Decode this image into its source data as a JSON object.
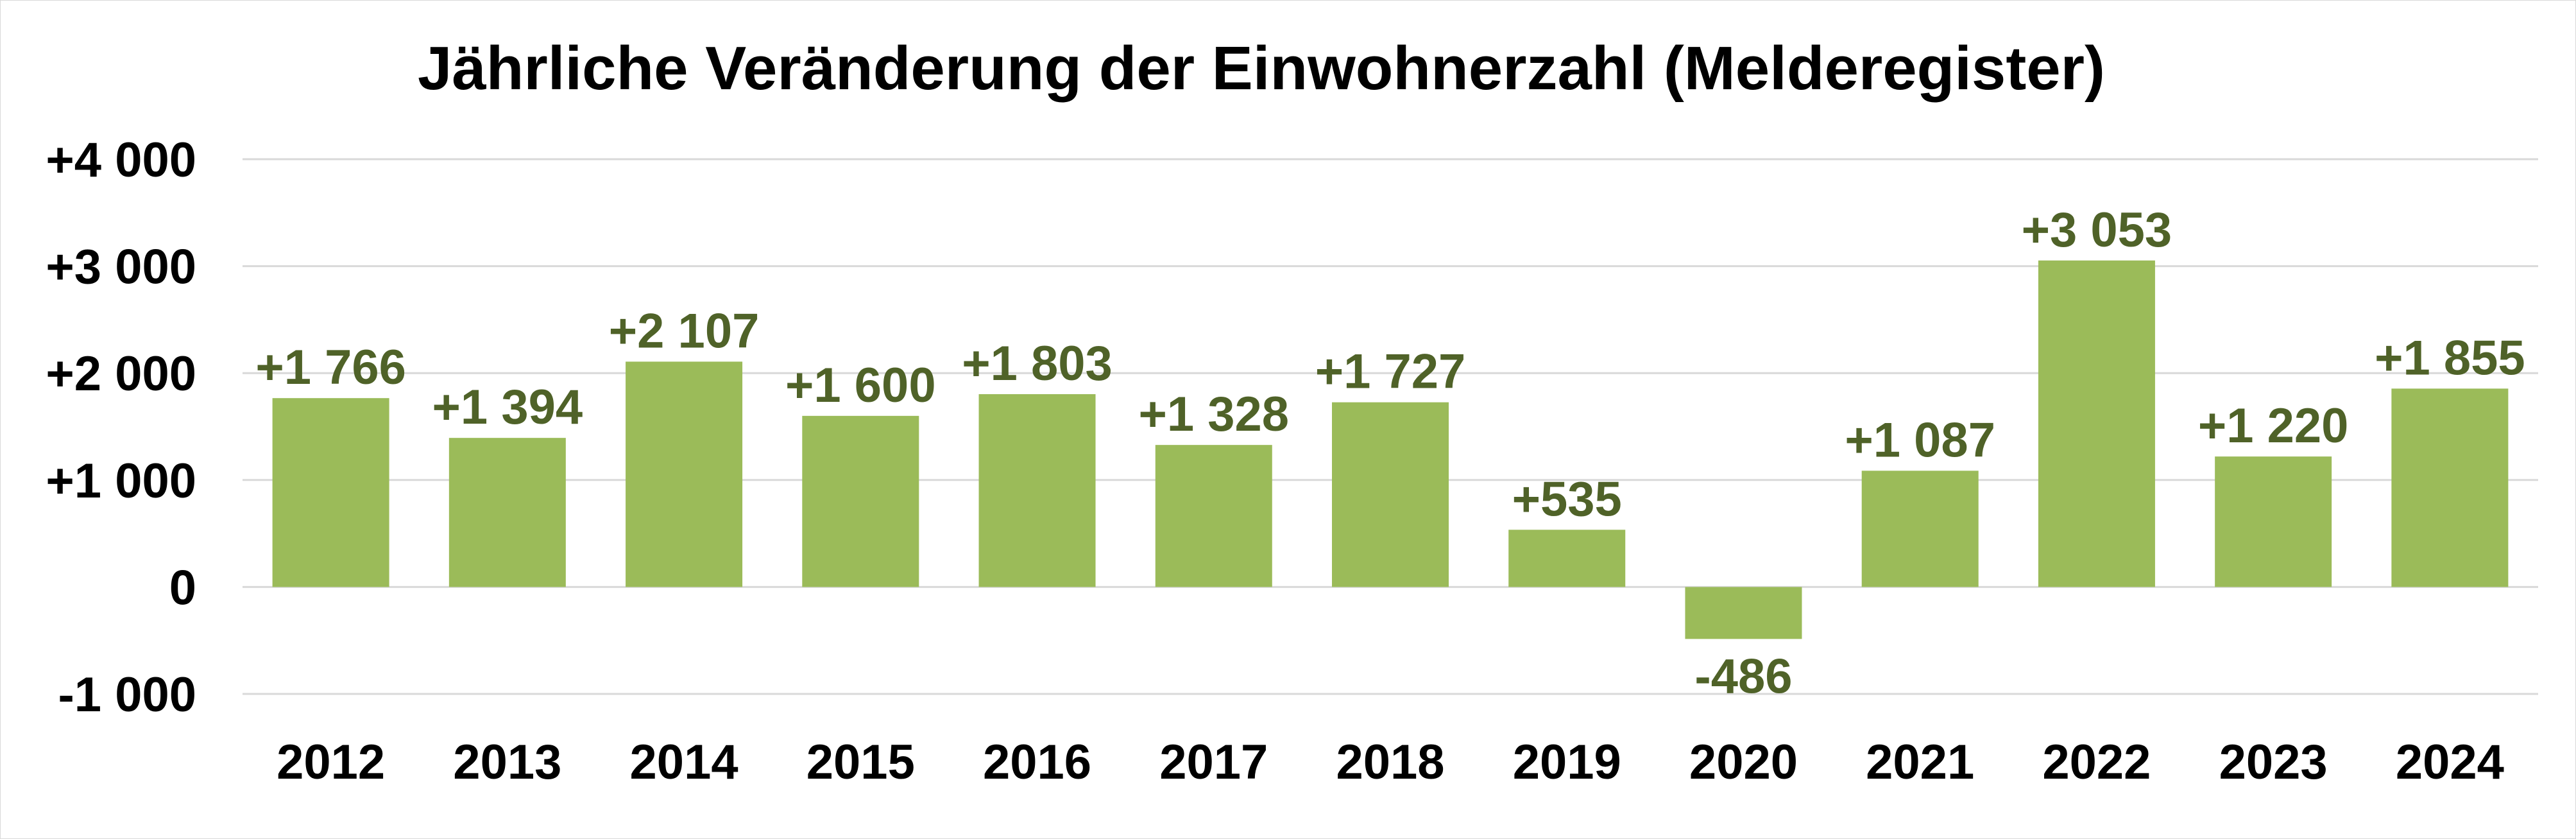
{
  "chart_data": {
    "type": "bar",
    "title": "Jährliche Veränderung der Einwohnerzahl (Melderegister)",
    "categories": [
      "2012",
      "2013",
      "2014",
      "2015",
      "2016",
      "2017",
      "2018",
      "2019",
      "2020",
      "2021",
      "2022",
      "2023",
      "2024"
    ],
    "values": [
      1766,
      1394,
      2107,
      1600,
      1803,
      1328,
      1727,
      535,
      -486,
      1087,
      3053,
      1220,
      1855
    ],
    "data_labels": [
      "+1 766",
      "+1 394",
      "+2 107",
      "+1 600",
      "+1 803",
      "+1 328",
      "+1 727",
      "+535",
      "-486",
      "+1 087",
      "+3 053",
      "+1 220",
      "+1 855"
    ],
    "ylim": [
      -1000,
      4000
    ],
    "yticks": [
      -1000,
      0,
      1000,
      2000,
      3000,
      4000
    ],
    "ytick_labels": [
      "-1 000",
      "0",
      "+1 000",
      "+2 000",
      "+3 000",
      "+4 000"
    ],
    "xlabel": "",
    "ylabel": "",
    "grid": true,
    "legend": "none",
    "colors": {
      "bar": "#9bbb59",
      "label": "#4f6228",
      "grid": "#d9d9d9",
      "text": "#000000"
    }
  }
}
